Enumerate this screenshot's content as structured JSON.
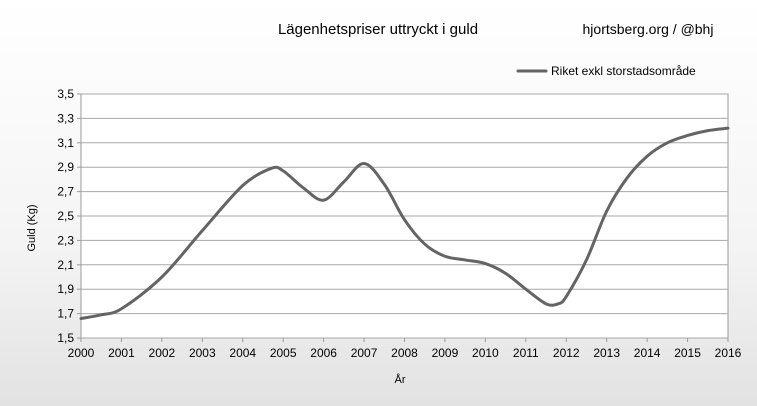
{
  "chart_data": {
    "type": "line",
    "title": "Lägenhetspriser uttryckt i guld",
    "credit": "hjortsberg.org / @bhj",
    "xlabel": "År",
    "ylabel": "Guld (Kg)",
    "xlim": [
      2000,
      2016
    ],
    "ylim": [
      1.5,
      3.5
    ],
    "xticks": [
      "2000",
      "2001",
      "2002",
      "2003",
      "2004",
      "2005",
      "2006",
      "2007",
      "2008",
      "2009",
      "2010",
      "2011",
      "2012",
      "2013",
      "2014",
      "2015",
      "2016"
    ],
    "yticks": [
      "1,5",
      "1,7",
      "1,9",
      "2,1",
      "2,3",
      "2,5",
      "2,7",
      "2,9",
      "3,1",
      "3,3",
      "3,5"
    ],
    "grid": true,
    "legend_position": "top-right",
    "series": [
      {
        "name": "Riket exkl storstadsområde",
        "color": "#646464",
        "x": [
          2000,
          2000.5,
          2001,
          2002,
          2003,
          2004,
          2004.7,
          2005,
          2005.5,
          2006,
          2006.5,
          2007,
          2007.5,
          2008,
          2008.5,
          2009,
          2009.5,
          2010,
          2010.5,
          2011,
          2011.5,
          2011.8,
          2012,
          2012.5,
          2013,
          2013.5,
          2014,
          2014.5,
          2015,
          2015.5,
          2016
        ],
        "values": [
          1.66,
          1.69,
          1.74,
          2.0,
          2.38,
          2.75,
          2.89,
          2.87,
          2.73,
          2.63,
          2.78,
          2.93,
          2.76,
          2.47,
          2.27,
          2.17,
          2.14,
          2.11,
          2.03,
          1.9,
          1.78,
          1.78,
          1.84,
          2.14,
          2.54,
          2.81,
          2.99,
          3.1,
          3.16,
          3.2,
          3.22
        ]
      }
    ]
  }
}
